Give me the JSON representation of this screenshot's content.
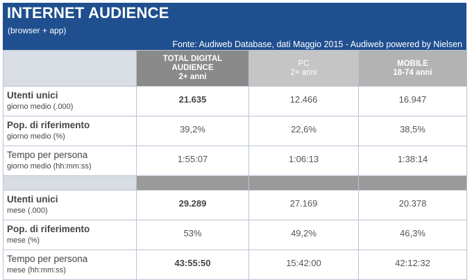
{
  "header": {
    "title": "INTERNET AUDIENCE",
    "subtitle": "(browser + app)",
    "source": "Fonte: Audiweb Database, dati Maggio 2015 - Audiweb powered by Nielsen"
  },
  "columns": [
    {
      "main": "TOTAL DIGITAL",
      "main2": "AUDIENCE",
      "sub": "2+ anni"
    },
    {
      "main": "PC",
      "sub": "2+ anni"
    },
    {
      "main": "MOBILE",
      "sub": "18-74 anni"
    }
  ],
  "daily": [
    {
      "label": "Utenti unici",
      "label_sub": "giorno medio (.000)",
      "values": [
        "21.635",
        "12.466",
        "16.947"
      ]
    },
    {
      "label": "Pop. di riferimento",
      "label_sub": "giorno medio (%)",
      "values": [
        "39,2%",
        "22,6%",
        "38,5%"
      ]
    },
    {
      "label": "Tempo per persona",
      "label_sub": "giorno medio (hh:mm:ss)",
      "values": [
        "1:55:07",
        "1:06:13",
        "1:38:14"
      ]
    }
  ],
  "monthly": [
    {
      "label": "Utenti unici",
      "label_sub": "mese (.000)",
      "values": [
        "29.289",
        "27.169",
        "20.378"
      ]
    },
    {
      "label": "Pop. di riferimento",
      "label_sub": "mese (%)",
      "values": [
        "53%",
        "49,2%",
        "46,3%"
      ]
    },
    {
      "label": "Tempo per persona",
      "label_sub": "mese (hh:mm:ss)",
      "values": [
        "43:55:50",
        "15:42:00",
        "42:12:32"
      ]
    }
  ],
  "colors": {
    "header_bg": "#1f4f8f",
    "total_col": "#8a8a8a",
    "separator": "#9a9a9a"
  }
}
